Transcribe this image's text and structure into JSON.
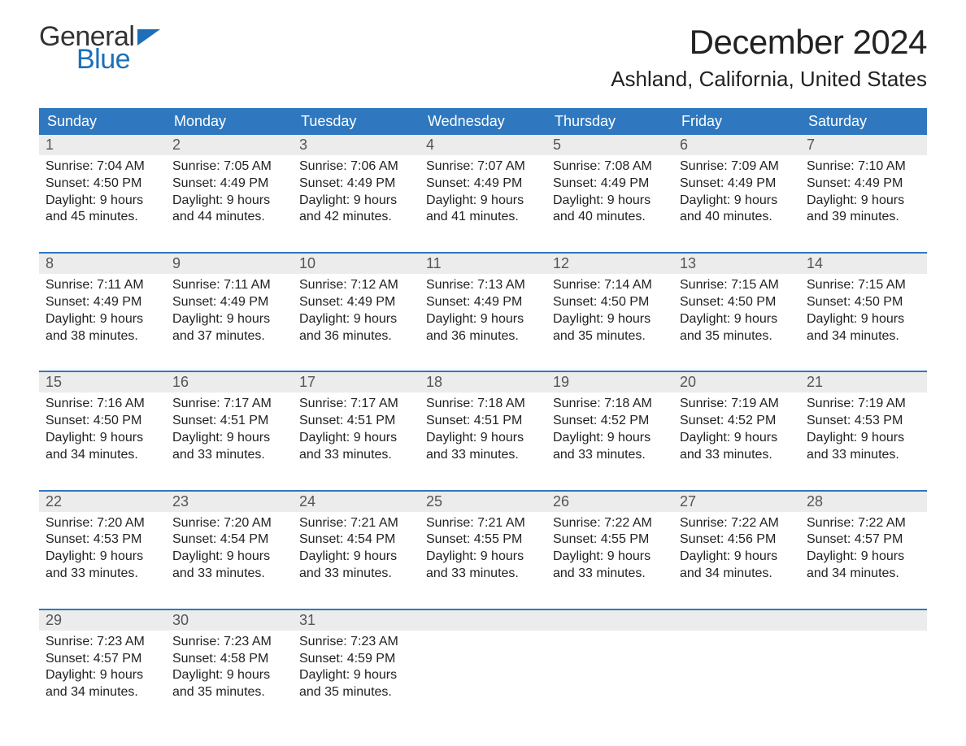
{
  "logo": {
    "word1": "General",
    "word2": "Blue",
    "tri_color": "#1d6fb8",
    "text_color1": "#333333",
    "text_color2": "#1d6fb8"
  },
  "title": "December 2024",
  "location": "Ashland, California, United States",
  "colors": {
    "header_bg": "#2f78bf",
    "header_text": "#ffffff",
    "daynum_bg": "#ececec",
    "week_border": "#2f78bf",
    "body_text": "#222222"
  },
  "days_of_week": [
    "Sunday",
    "Monday",
    "Tuesday",
    "Wednesday",
    "Thursday",
    "Friday",
    "Saturday"
  ],
  "labels": {
    "sunrise": "Sunrise:",
    "sunset": "Sunset:",
    "daylight": "Daylight:"
  },
  "weeks": [
    [
      {
        "n": "1",
        "sr": "7:04 AM",
        "ss": "4:50 PM",
        "dl1": "9 hours",
        "dl2": "and 45 minutes."
      },
      {
        "n": "2",
        "sr": "7:05 AM",
        "ss": "4:49 PM",
        "dl1": "9 hours",
        "dl2": "and 44 minutes."
      },
      {
        "n": "3",
        "sr": "7:06 AM",
        "ss": "4:49 PM",
        "dl1": "9 hours",
        "dl2": "and 42 minutes."
      },
      {
        "n": "4",
        "sr": "7:07 AM",
        "ss": "4:49 PM",
        "dl1": "9 hours",
        "dl2": "and 41 minutes."
      },
      {
        "n": "5",
        "sr": "7:08 AM",
        "ss": "4:49 PM",
        "dl1": "9 hours",
        "dl2": "and 40 minutes."
      },
      {
        "n": "6",
        "sr": "7:09 AM",
        "ss": "4:49 PM",
        "dl1": "9 hours",
        "dl2": "and 40 minutes."
      },
      {
        "n": "7",
        "sr": "7:10 AM",
        "ss": "4:49 PM",
        "dl1": "9 hours",
        "dl2": "and 39 minutes."
      }
    ],
    [
      {
        "n": "8",
        "sr": "7:11 AM",
        "ss": "4:49 PM",
        "dl1": "9 hours",
        "dl2": "and 38 minutes."
      },
      {
        "n": "9",
        "sr": "7:11 AM",
        "ss": "4:49 PM",
        "dl1": "9 hours",
        "dl2": "and 37 minutes."
      },
      {
        "n": "10",
        "sr": "7:12 AM",
        "ss": "4:49 PM",
        "dl1": "9 hours",
        "dl2": "and 36 minutes."
      },
      {
        "n": "11",
        "sr": "7:13 AM",
        "ss": "4:49 PM",
        "dl1": "9 hours",
        "dl2": "and 36 minutes."
      },
      {
        "n": "12",
        "sr": "7:14 AM",
        "ss": "4:50 PM",
        "dl1": "9 hours",
        "dl2": "and 35 minutes."
      },
      {
        "n": "13",
        "sr": "7:15 AM",
        "ss": "4:50 PM",
        "dl1": "9 hours",
        "dl2": "and 35 minutes."
      },
      {
        "n": "14",
        "sr": "7:15 AM",
        "ss": "4:50 PM",
        "dl1": "9 hours",
        "dl2": "and 34 minutes."
      }
    ],
    [
      {
        "n": "15",
        "sr": "7:16 AM",
        "ss": "4:50 PM",
        "dl1": "9 hours",
        "dl2": "and 34 minutes."
      },
      {
        "n": "16",
        "sr": "7:17 AM",
        "ss": "4:51 PM",
        "dl1": "9 hours",
        "dl2": "and 33 minutes."
      },
      {
        "n": "17",
        "sr": "7:17 AM",
        "ss": "4:51 PM",
        "dl1": "9 hours",
        "dl2": "and 33 minutes."
      },
      {
        "n": "18",
        "sr": "7:18 AM",
        "ss": "4:51 PM",
        "dl1": "9 hours",
        "dl2": "and 33 minutes."
      },
      {
        "n": "19",
        "sr": "7:18 AM",
        "ss": "4:52 PM",
        "dl1": "9 hours",
        "dl2": "and 33 minutes."
      },
      {
        "n": "20",
        "sr": "7:19 AM",
        "ss": "4:52 PM",
        "dl1": "9 hours",
        "dl2": "and 33 minutes."
      },
      {
        "n": "21",
        "sr": "7:19 AM",
        "ss": "4:53 PM",
        "dl1": "9 hours",
        "dl2": "and 33 minutes."
      }
    ],
    [
      {
        "n": "22",
        "sr": "7:20 AM",
        "ss": "4:53 PM",
        "dl1": "9 hours",
        "dl2": "and 33 minutes."
      },
      {
        "n": "23",
        "sr": "7:20 AM",
        "ss": "4:54 PM",
        "dl1": "9 hours",
        "dl2": "and 33 minutes."
      },
      {
        "n": "24",
        "sr": "7:21 AM",
        "ss": "4:54 PM",
        "dl1": "9 hours",
        "dl2": "and 33 minutes."
      },
      {
        "n": "25",
        "sr": "7:21 AM",
        "ss": "4:55 PM",
        "dl1": "9 hours",
        "dl2": "and 33 minutes."
      },
      {
        "n": "26",
        "sr": "7:22 AM",
        "ss": "4:55 PM",
        "dl1": "9 hours",
        "dl2": "and 33 minutes."
      },
      {
        "n": "27",
        "sr": "7:22 AM",
        "ss": "4:56 PM",
        "dl1": "9 hours",
        "dl2": "and 34 minutes."
      },
      {
        "n": "28",
        "sr": "7:22 AM",
        "ss": "4:57 PM",
        "dl1": "9 hours",
        "dl2": "and 34 minutes."
      }
    ],
    [
      {
        "n": "29",
        "sr": "7:23 AM",
        "ss": "4:57 PM",
        "dl1": "9 hours",
        "dl2": "and 34 minutes."
      },
      {
        "n": "30",
        "sr": "7:23 AM",
        "ss": "4:58 PM",
        "dl1": "9 hours",
        "dl2": "and 35 minutes."
      },
      {
        "n": "31",
        "sr": "7:23 AM",
        "ss": "4:59 PM",
        "dl1": "9 hours",
        "dl2": "and 35 minutes."
      },
      null,
      null,
      null,
      null
    ]
  ]
}
